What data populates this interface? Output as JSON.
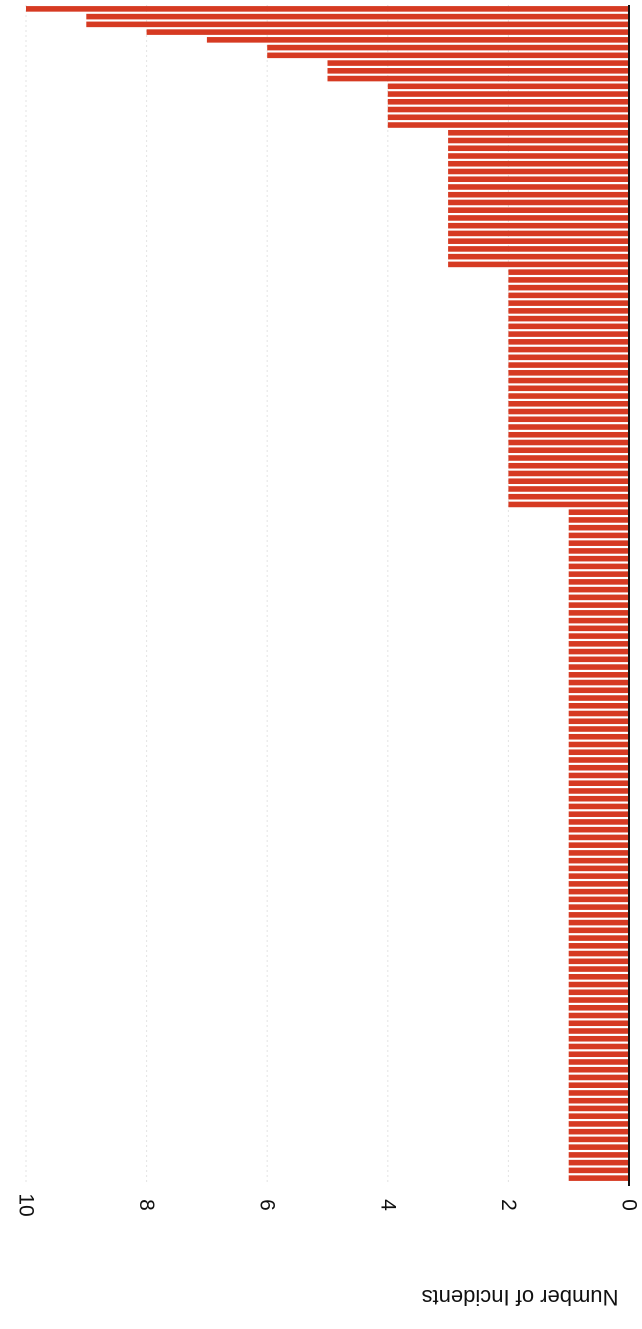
{
  "chart_data": {
    "type": "bar",
    "orientation": "horizontal",
    "ylabel": "Number of Incidents",
    "ylim": [
      0,
      10
    ],
    "yticks": [
      "0",
      "2",
      "4",
      "6",
      "8",
      "10"
    ],
    "grid": true,
    "bar_color": "#d63a22",
    "values": [
      10,
      9,
      9,
      8,
      7,
      6,
      6,
      5,
      5,
      5,
      4,
      4,
      4,
      4,
      4,
      4,
      3,
      3,
      3,
      3,
      3,
      3,
      3,
      3,
      3,
      3,
      3,
      3,
      3,
      3,
      3,
      3,
      3,
      3,
      2,
      2,
      2,
      2,
      2,
      2,
      2,
      2,
      2,
      2,
      2,
      2,
      2,
      2,
      2,
      2,
      2,
      2,
      2,
      2,
      2,
      2,
      2,
      2,
      2,
      2,
      2,
      2,
      2,
      2,
      2,
      1,
      1,
      1,
      1,
      1,
      1,
      1,
      1,
      1,
      1,
      1,
      1,
      1,
      1,
      1,
      1,
      1,
      1,
      1,
      1,
      1,
      1,
      1,
      1,
      1,
      1,
      1,
      1,
      1,
      1,
      1,
      1,
      1,
      1,
      1,
      1,
      1,
      1,
      1,
      1,
      1,
      1,
      1,
      1,
      1,
      1,
      1,
      1,
      1,
      1,
      1,
      1,
      1,
      1,
      1,
      1,
      1,
      1,
      1,
      1,
      1,
      1,
      1,
      1,
      1,
      1,
      1,
      1,
      1,
      1,
      1,
      1,
      1,
      1,
      1,
      1,
      1,
      1,
      1,
      1,
      1,
      1,
      1,
      1,
      1,
      1,
      1
    ]
  }
}
